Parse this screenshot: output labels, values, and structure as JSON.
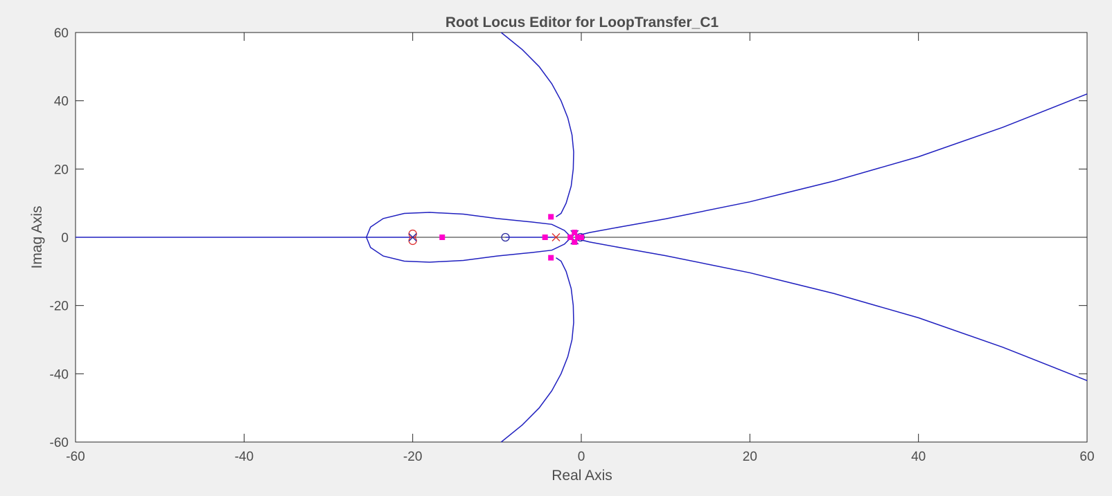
{
  "chart_data": {
    "type": "root-locus",
    "title": "Root Locus Editor for LoopTransfer_C1",
    "xlabel": "Real Axis",
    "ylabel": "Imag Axis",
    "xlim": [
      -60,
      60
    ],
    "ylim": [
      -60,
      60
    ],
    "xticks": [
      -60,
      -40,
      -20,
      0,
      20,
      40,
      60
    ],
    "yticks": [
      -60,
      -40,
      -20,
      0,
      20,
      40,
      60
    ],
    "xtick_labels": [
      "-60",
      "-40",
      "-20",
      "0",
      "20",
      "40",
      "60"
    ],
    "ytick_labels": [
      "-60",
      "-40",
      "-20",
      "0",
      "20",
      "40",
      "60"
    ],
    "grid": false,
    "colors": {
      "locus": "#1f1fbf",
      "open_loop_zero": "#2a2a9e",
      "compensator": "#e03030",
      "closed_loop_pole": "#ff00cc",
      "plot_bg": "#ffffff",
      "figure_bg": "#f0f0f0"
    },
    "branches": [
      {
        "name": "upper-departing",
        "points": [
          [
            -9.5,
            60
          ],
          [
            -7,
            55
          ],
          [
            -5,
            50
          ],
          [
            -3.5,
            45
          ],
          [
            -2.4,
            40
          ],
          [
            -1.6,
            35
          ],
          [
            -1.1,
            30
          ],
          [
            -0.9,
            25
          ],
          [
            -0.95,
            20
          ],
          [
            -1.2,
            15
          ],
          [
            -1.8,
            10
          ],
          [
            -2.4,
            7
          ],
          [
            -3,
            6
          ]
        ]
      },
      {
        "name": "lower-departing",
        "points": [
          [
            -9.5,
            -60
          ],
          [
            -7,
            -55
          ],
          [
            -5,
            -50
          ],
          [
            -3.5,
            -45
          ],
          [
            -2.4,
            -40
          ],
          [
            -1.6,
            -35
          ],
          [
            -1.1,
            -30
          ],
          [
            -0.9,
            -25
          ],
          [
            -0.95,
            -20
          ],
          [
            -1.2,
            -15
          ],
          [
            -1.8,
            -10
          ],
          [
            -2.4,
            -7
          ],
          [
            -3,
            -6
          ]
        ]
      },
      {
        "name": "loop-upper",
        "points": [
          [
            -1.2,
            0
          ],
          [
            -2,
            2
          ],
          [
            -3.5,
            3.8
          ],
          [
            -6,
            4.5
          ],
          [
            -10,
            5.5
          ],
          [
            -14,
            6.8
          ],
          [
            -18,
            7.3
          ],
          [
            -21,
            7
          ],
          [
            -23.5,
            5.5
          ],
          [
            -25,
            3
          ],
          [
            -25.5,
            0
          ]
        ]
      },
      {
        "name": "loop-lower",
        "points": [
          [
            -1.2,
            0
          ],
          [
            -2,
            -2
          ],
          [
            -3.5,
            -3.8
          ],
          [
            -6,
            -4.5
          ],
          [
            -10,
            -5.5
          ],
          [
            -14,
            -6.8
          ],
          [
            -18,
            -7.3
          ],
          [
            -21,
            -7
          ],
          [
            -23.5,
            -5.5
          ],
          [
            -25,
            -3
          ],
          [
            -25.5,
            0
          ]
        ]
      },
      {
        "name": "asymptote-upper",
        "points": [
          [
            -0.3,
            0
          ],
          [
            0,
            0.8
          ],
          [
            1,
            1.4
          ],
          [
            5,
            3.2
          ],
          [
            10,
            5.4
          ],
          [
            20,
            10.4
          ],
          [
            30,
            16.5
          ],
          [
            40,
            23.6
          ],
          [
            50,
            32.2
          ],
          [
            60,
            42
          ]
        ]
      },
      {
        "name": "asymptote-lower",
        "points": [
          [
            -0.3,
            0
          ],
          [
            0,
            -0.8
          ],
          [
            1,
            -1.4
          ],
          [
            5,
            -3.2
          ],
          [
            10,
            -5.4
          ],
          [
            20,
            -10.4
          ],
          [
            30,
            -16.5
          ],
          [
            40,
            -23.6
          ],
          [
            50,
            -32.2
          ],
          [
            60,
            -42
          ]
        ]
      },
      {
        "name": "real-axis-left",
        "points": [
          [
            -60,
            0
          ],
          [
            -20,
            0
          ]
        ]
      },
      {
        "name": "real-axis-mid",
        "points": [
          [
            -9,
            0
          ],
          [
            -3.2,
            0
          ]
        ]
      }
    ],
    "zeros": [
      {
        "x": -20,
        "y": 1,
        "color_key": "compensator"
      },
      {
        "x": -20,
        "y": -1,
        "color_key": "compensator"
      },
      {
        "x": -9,
        "y": 0,
        "color_key": "open_loop_zero"
      },
      {
        "x": -0.1,
        "y": 0,
        "color_key": "open_loop_zero"
      }
    ],
    "poles": [
      {
        "x": -3,
        "y": 0,
        "color_key": "compensator"
      },
      {
        "x": -20,
        "y": 0,
        "color_key": "open_loop_zero"
      },
      {
        "x": -0.8,
        "y": 0.9,
        "color_key": "open_loop_zero"
      },
      {
        "x": -0.8,
        "y": -0.9,
        "color_key": "open_loop_zero"
      }
    ],
    "closed_loop_poles": [
      {
        "x": -3.6,
        "y": 6
      },
      {
        "x": -3.6,
        "y": -6
      },
      {
        "x": -16.5,
        "y": 0
      },
      {
        "x": -4.3,
        "y": 0
      },
      {
        "x": -1.3,
        "y": 0
      },
      {
        "x": -0.8,
        "y": 1.4
      },
      {
        "x": -0.8,
        "y": -1.4
      },
      {
        "x": -0.4,
        "y": 0
      },
      {
        "x": 0,
        "y": 0
      }
    ]
  }
}
